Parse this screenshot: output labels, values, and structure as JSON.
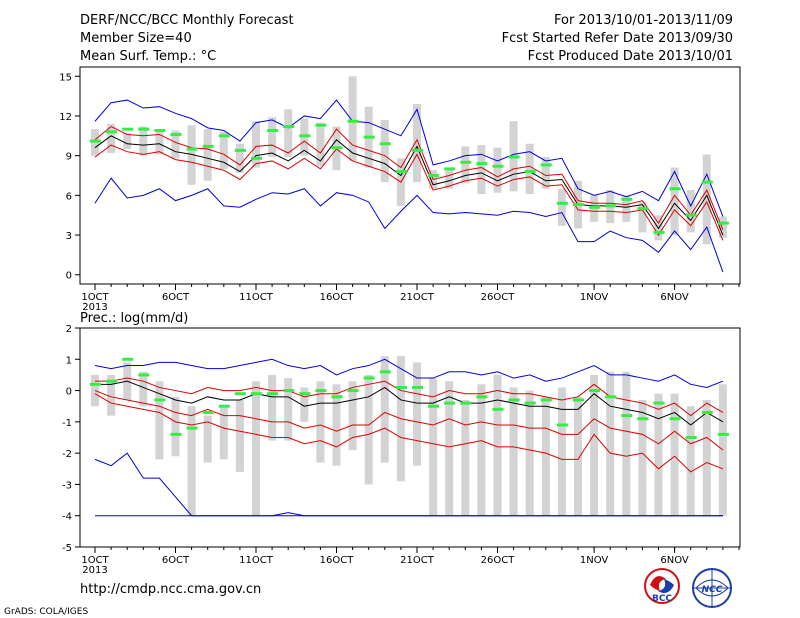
{
  "header": {
    "left1": "DERF/NCC/BCC Monthly Forecast",
    "left2": "Member Size=40",
    "left3": "Mean Surf. Temp.: °C",
    "right1": "For 2013/10/01-2013/11/09",
    "right2": "Fcst Started Refer Date 2013/09/30",
    "right3": "Fcst Produced Date 2013/10/01"
  },
  "footer": {
    "url": "http://cmdp.ncc.cma.gov.cn",
    "grads": "GrADS: COLA/IGES",
    "logo1": "BCC",
    "logo2": "NCC"
  },
  "colors": {
    "blue": "#0000dd",
    "red": "#dd0000",
    "black": "#000000",
    "box": "#d3d3d3",
    "green": "#33ee44"
  },
  "chart_data": [
    {
      "type": "line",
      "title": "Mean Surf. Temp.: °C",
      "ylim": [
        -0.7,
        15.7
      ],
      "yticks": [
        0,
        3,
        6,
        9,
        12,
        15
      ],
      "days": 40,
      "xtick_labels": [
        {
          "day": 1,
          "label": "1OCT"
        },
        {
          "day": 6,
          "label": "6OCT"
        },
        {
          "day": 11,
          "label": "11OCT"
        },
        {
          "day": 16,
          "label": "16OCT"
        },
        {
          "day": 21,
          "label": "21OCT"
        },
        {
          "day": 26,
          "label": "26OCT"
        },
        {
          "day": 32,
          "label": "1NOV"
        },
        {
          "day": 37,
          "label": "6NOV"
        }
      ],
      "year_label": "2013",
      "series": [
        {
          "role": "max",
          "values": [
            11.6,
            13.0,
            13.2,
            12.6,
            12.7,
            12.2,
            11.8,
            11.1,
            10.9,
            10.1,
            11.5,
            11.7,
            11.1,
            12.0,
            11.8,
            13.2,
            11.6,
            11.5,
            11.0,
            10.5,
            12.5,
            8.3,
            8.6,
            9.0,
            9.1,
            8.6,
            9.1,
            9.3,
            8.6,
            8.8,
            6.5,
            6.0,
            6.3,
            5.9,
            6.3,
            5.6,
            7.8,
            5.2,
            7.6,
            4.4
          ]
        },
        {
          "role": "upper",
          "values": [
            10.2,
            11.2,
            10.6,
            10.5,
            10.6,
            10.0,
            9.6,
            9.5,
            9.1,
            8.3,
            9.7,
            9.8,
            9.2,
            10.1,
            9.2,
            11.0,
            9.8,
            9.4,
            9.0,
            8.1,
            10.2,
            7.2,
            7.5,
            7.9,
            8.1,
            7.4,
            8.0,
            8.2,
            7.5,
            7.6,
            5.6,
            5.4,
            5.4,
            5.3,
            5.6,
            3.9,
            6.0,
            4.5,
            6.4,
            3.4
          ]
        },
        {
          "role": "mean",
          "values": [
            9.6,
            10.5,
            9.9,
            9.8,
            9.9,
            9.3,
            9.1,
            8.8,
            8.5,
            7.8,
            9.0,
            9.2,
            8.6,
            9.4,
            8.6,
            10.2,
            9.2,
            8.8,
            8.4,
            7.5,
            9.7,
            6.8,
            7.1,
            7.5,
            7.7,
            7.1,
            7.6,
            7.8,
            7.1,
            7.2,
            5.3,
            5.2,
            5.2,
            5.1,
            5.3,
            3.5,
            5.4,
            4.1,
            6.0,
            3.0
          ]
        },
        {
          "role": "lower",
          "values": [
            8.9,
            9.8,
            9.3,
            9.1,
            9.3,
            8.7,
            8.5,
            8.2,
            7.9,
            7.2,
            8.4,
            8.6,
            8.0,
            8.8,
            8.0,
            9.5,
            8.6,
            8.2,
            7.8,
            7.0,
            9.1,
            6.4,
            6.7,
            7.1,
            7.3,
            6.7,
            7.2,
            7.4,
            6.7,
            6.8,
            4.9,
            4.8,
            4.8,
            4.7,
            4.9,
            3.0,
            4.9,
            3.7,
            5.5,
            2.6
          ]
        },
        {
          "role": "min",
          "values": [
            5.4,
            7.3,
            5.8,
            6.0,
            6.5,
            5.6,
            6.0,
            6.5,
            5.2,
            5.1,
            5.7,
            6.2,
            6.1,
            6.5,
            5.2,
            6.2,
            6.0,
            5.5,
            3.5,
            4.8,
            6.0,
            4.7,
            4.6,
            4.7,
            4.6,
            4.5,
            4.8,
            4.7,
            4.4,
            4.7,
            2.5,
            2.5,
            3.3,
            2.8,
            2.6,
            1.7,
            3.3,
            1.9,
            3.6,
            0.2
          ]
        }
      ],
      "boxes": [
        [
          9.0,
          11.0
        ],
        [
          9.2,
          11.4
        ],
        [
          9.5,
          10.7
        ],
        [
          9.0,
          11.2
        ],
        [
          9.1,
          11.0
        ],
        [
          8.8,
          10.9
        ],
        [
          6.8,
          11.3
        ],
        [
          7.1,
          11.0
        ],
        [
          8.0,
          10.8
        ],
        [
          7.7,
          9.9
        ],
        [
          8.1,
          11.6
        ],
        [
          8.9,
          11.9
        ],
        [
          8.9,
          12.5
        ],
        [
          9.0,
          11.8
        ],
        [
          8.2,
          11.5
        ],
        [
          7.9,
          11.2
        ],
        [
          8.6,
          15.0
        ],
        [
          8.1,
          12.7
        ],
        [
          7.0,
          11.7
        ],
        [
          5.2,
          8.8
        ],
        [
          7.0,
          12.9
        ],
        [
          6.5,
          7.9
        ],
        [
          6.5,
          8.1
        ],
        [
          6.9,
          9.7
        ],
        [
          6.1,
          9.8
        ],
        [
          6.2,
          9.6
        ],
        [
          6.3,
          11.6
        ],
        [
          6.1,
          9.9
        ],
        [
          6.5,
          8.9
        ],
        [
          3.7,
          6.5
        ],
        [
          3.5,
          7.1
        ],
        [
          4.0,
          6.0
        ],
        [
          3.9,
          6.4
        ],
        [
          4.0,
          6.0
        ],
        [
          3.2,
          5.5
        ],
        [
          2.6,
          4.5
        ],
        [
          3.0,
          8.1
        ],
        [
          3.2,
          6.4
        ],
        [
          2.3,
          9.1
        ],
        [
          2.8,
          4.4
        ],
        [
          2.5,
          4.6
        ],
        [
          2.2,
          3.6
        ]
      ],
      "observed": [
        10.1,
        10.8,
        11.0,
        11.0,
        10.9,
        10.6,
        9.5,
        9.7,
        10.5,
        9.4,
        8.8,
        10.9,
        11.2,
        10.5,
        11.3,
        9.6,
        11.6,
        10.4,
        9.9,
        7.8,
        9.4,
        7.5,
        8.0,
        8.5,
        8.4,
        8.2,
        8.9,
        7.8,
        8.3,
        5.4,
        5.3,
        5.1,
        5.2,
        5.7,
        5.0,
        3.2,
        6.5,
        4.5,
        7.0,
        3.9,
        3.3,
        2.8
      ]
    },
    {
      "type": "line",
      "title": "Prec.: log(mm/d)",
      "ylim": [
        -5,
        2
      ],
      "yticks": [
        -5,
        -4,
        -3,
        -2,
        -1,
        0,
        1,
        2
      ],
      "days": 40,
      "xtick_labels": [
        {
          "day": 1,
          "label": "1OCT"
        },
        {
          "day": 6,
          "label": "6OCT"
        },
        {
          "day": 11,
          "label": "11OCT"
        },
        {
          "day": 16,
          "label": "16OCT"
        },
        {
          "day": 21,
          "label": "21OCT"
        },
        {
          "day": 26,
          "label": "26OCT"
        },
        {
          "day": 32,
          "label": "1NOV"
        },
        {
          "day": 37,
          "label": "6NOV"
        }
      ],
      "year_label": "2013",
      "series": [
        {
          "role": "max",
          "values": [
            0.8,
            0.7,
            0.8,
            0.8,
            0.9,
            0.9,
            0.8,
            0.7,
            0.7,
            0.8,
            0.9,
            1.0,
            0.8,
            0.7,
            0.8,
            0.5,
            0.7,
            0.8,
            1.0,
            0.7,
            0.4,
            0.4,
            0.6,
            0.6,
            0.5,
            0.6,
            0.4,
            0.5,
            0.3,
            0.4,
            0.6,
            0.8,
            0.5,
            0.5,
            0.4,
            0.3,
            0.5,
            0.2,
            0.1,
            0.3,
            -0.6
          ]
        },
        {
          "role": "upper",
          "values": [
            0.3,
            0.3,
            0.4,
            0.3,
            0.1,
            0.0,
            -0.1,
            0.1,
            0.0,
            0.0,
            0.1,
            0.0,
            0.0,
            -0.2,
            -0.1,
            -0.1,
            0.1,
            0.2,
            0.3,
            0.0,
            -0.1,
            -0.2,
            0.0,
            -0.1,
            -0.1,
            0.0,
            -0.1,
            -0.1,
            -0.2,
            -0.3,
            -0.2,
            0.2,
            -0.2,
            -0.3,
            -0.4,
            -0.6,
            -0.4,
            -0.8,
            -0.4,
            -0.7,
            -0.9
          ]
        },
        {
          "role": "mean",
          "values": [
            0.2,
            0.2,
            0.3,
            0.1,
            -0.1,
            -0.3,
            -0.4,
            -0.2,
            -0.3,
            -0.3,
            -0.1,
            -0.2,
            -0.2,
            -0.5,
            -0.4,
            -0.4,
            -0.3,
            -0.2,
            0.1,
            -0.3,
            -0.4,
            -0.4,
            -0.2,
            -0.4,
            -0.4,
            -0.3,
            -0.4,
            -0.5,
            -0.5,
            -0.6,
            -0.6,
            -0.1,
            -0.5,
            -0.6,
            -0.7,
            -0.9,
            -0.7,
            -1.1,
            -0.7,
            -1.0,
            -1.3
          ]
        },
        {
          "role": "lower",
          "values": [
            0.0,
            -0.2,
            -0.3,
            -0.4,
            -0.5,
            -0.7,
            -0.8,
            -0.6,
            -0.8,
            -0.8,
            -0.9,
            -1.0,
            -1.0,
            -1.2,
            -1.1,
            -1.3,
            -1.1,
            -1.1,
            -0.7,
            -0.9,
            -1.0,
            -1.1,
            -0.9,
            -1.1,
            -1.0,
            -1.1,
            -1.1,
            -1.2,
            -1.2,
            -1.4,
            -1.4,
            -0.9,
            -1.2,
            -1.3,
            -1.4,
            -1.7,
            -1.3,
            -1.7,
            -1.5,
            -1.9,
            -1.9
          ]
        },
        {
          "role": "lower2",
          "values": [
            -0.1,
            -0.4,
            -0.5,
            -0.6,
            -0.7,
            -1.0,
            -1.1,
            -1.0,
            -1.2,
            -1.3,
            -1.4,
            -1.5,
            -1.5,
            -1.7,
            -1.6,
            -1.8,
            -1.5,
            -1.4,
            -1.2,
            -1.5,
            -1.6,
            -1.7,
            -1.8,
            -1.7,
            -1.6,
            -1.8,
            -1.8,
            -1.9,
            -2.0,
            -2.2,
            -2.2,
            -1.4,
            -2.0,
            -2.1,
            -2.0,
            -2.5,
            -2.1,
            -2.6,
            -2.3,
            -2.5,
            -3.0
          ]
        },
        {
          "role": "min",
          "values": [
            -2.2,
            -2.4,
            -2.0,
            -2.8,
            -2.8,
            -3.4,
            -4.0,
            -4.0,
            -4.0,
            -4.0,
            -4.0,
            -4.0,
            -3.9,
            -4.0,
            -4.0,
            -4.0,
            -4.0,
            -4.0,
            -4.0,
            -4.0,
            -4.0,
            -4.0,
            -4.0,
            -4.0,
            -4.0,
            -4.0,
            -4.0,
            -4.0,
            -4.0,
            -4.0,
            -4.0,
            -4.0,
            -4.0,
            -4.0,
            -4.0,
            -4.0,
            -4.0,
            -4.0,
            -4.0,
            -4.0,
            -4.0
          ]
        },
        {
          "role": "low2",
          "values": [
            -4.0,
            -4.0,
            -4.0,
            -4.0,
            -4.0,
            -4.0,
            -4.0,
            -4.0,
            -4.0,
            -4.0,
            -4.0,
            -4.0,
            -4.0,
            -4.0,
            -4.0,
            -4.0,
            -4.0,
            -4.0,
            -4.0,
            -4.0,
            -4.0,
            -4.0,
            -4.0,
            -4.0,
            -4.0,
            -4.0,
            -4.0,
            -4.0,
            -4.0,
            -4.0,
            -4.0,
            -4.0,
            -4.0,
            -4.0,
            -4.0,
            -4.0,
            -4.0,
            -4.0,
            -4.0,
            -4.0,
            -4.0
          ]
        }
      ],
      "boxes": [
        [
          -0.5,
          0.5
        ],
        [
          -0.8,
          0.5
        ],
        [
          -0.3,
          0.9
        ],
        [
          -0.5,
          0.6
        ],
        [
          -2.2,
          0.3
        ],
        [
          -2.1,
          -0.2
        ],
        [
          -4.0,
          -0.5
        ],
        [
          -2.3,
          -0.8
        ],
        [
          -2.2,
          -0.5
        ],
        [
          -2.6,
          -0.3
        ],
        [
          -4.0,
          0.3
        ],
        [
          -1.6,
          0.5
        ],
        [
          -1.6,
          0.4
        ],
        [
          -1.0,
          0.1
        ],
        [
          -2.3,
          0.3
        ],
        [
          -2.4,
          0.2
        ],
        [
          -1.9,
          0.3
        ],
        [
          -3.0,
          0.5
        ],
        [
          -2.3,
          1.1
        ],
        [
          -2.9,
          1.1
        ],
        [
          -2.4,
          0.9
        ],
        [
          -4.0,
          0.4
        ],
        [
          -4.0,
          0.3
        ],
        [
          -4.0,
          -0.3
        ],
        [
          -4.0,
          0.2
        ],
        [
          -4.0,
          0.5
        ],
        [
          -4.0,
          0.1
        ],
        [
          -4.0,
          0.0
        ],
        [
          -4.0,
          -0.2
        ],
        [
          -4.0,
          0.1
        ],
        [
          -4.0,
          -0.2
        ],
        [
          -4.0,
          0.5
        ],
        [
          -4.0,
          0.6
        ],
        [
          -4.0,
          0.6
        ],
        [
          -4.0,
          -0.3
        ],
        [
          -4.0,
          -0.1
        ],
        [
          -4.0,
          -0.1
        ],
        [
          -4.0,
          -0.5
        ],
        [
          -4.0,
          -0.3
        ],
        [
          -4.0,
          0.2
        ],
        [
          -4.0,
          -0.8
        ],
        [
          -4.0,
          -1.1
        ]
      ],
      "observed": [
        0.2,
        0.3,
        1.0,
        0.5,
        -0.3,
        -1.4,
        -1.2,
        -0.7,
        -0.5,
        -0.1,
        -0.1,
        -0.1,
        0.0,
        -0.1,
        0.0,
        -0.2,
        0.0,
        0.4,
        0.6,
        0.1,
        0.1,
        -0.5,
        -0.4,
        -0.4,
        -0.2,
        -0.6,
        -0.3,
        -0.4,
        -0.3,
        -1.1,
        -0.3,
        0.0,
        -0.2,
        -0.8,
        -0.9,
        -0.4,
        -0.9,
        -1.5,
        -0.7,
        -1.4
      ]
    }
  ]
}
